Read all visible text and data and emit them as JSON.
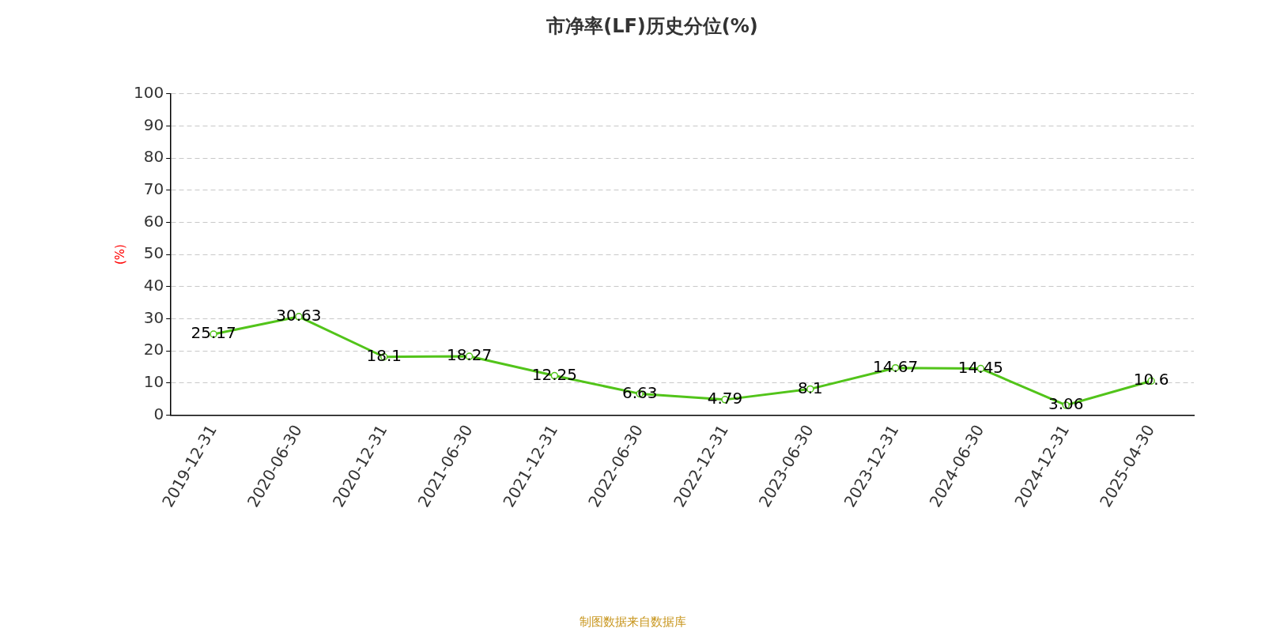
{
  "chart_data": {
    "type": "line",
    "title": "市净率(LF)历史分位(%)",
    "ylabel": "(%)",
    "categories": [
      "2019-12-31",
      "2020-06-30",
      "2020-12-31",
      "2021-06-30",
      "2021-12-31",
      "2022-06-30",
      "2022-12-31",
      "2023-06-30",
      "2023-12-31",
      "2024-06-30",
      "2024-12-31",
      "2025-04-30"
    ],
    "series": [
      {
        "color": "#52c41a",
        "values": [
          25.17,
          30.63,
          18.1,
          18.27,
          12.25,
          6.63,
          4.79,
          8.1,
          14.67,
          14.45,
          3.06,
          10.6
        ]
      }
    ],
    "ylim": [
      0,
      100
    ],
    "yticks": [
      0,
      10,
      20,
      30,
      40,
      50,
      60,
      70,
      80,
      90,
      100
    ],
    "grid": "y",
    "legend": false,
    "marker": "circle",
    "line_style": "solid",
    "data_labels": true,
    "annotations": [
      "制图数据来自数据库"
    ]
  }
}
